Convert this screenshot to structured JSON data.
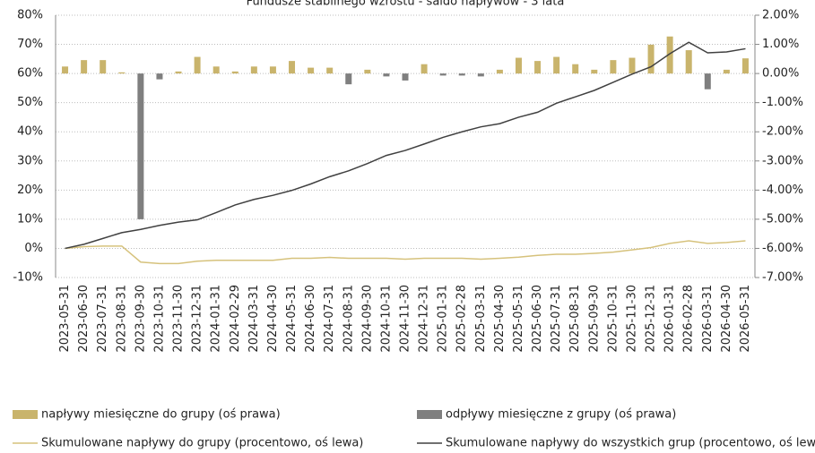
{
  "chart_data": {
    "type": "bar-line",
    "title": "Fundusze stabilnego wzrostu - saldo napływów - 3 lata",
    "categories": [
      "2023-05-31",
      "2023-06-30",
      "2023-07-31",
      "2023-08-31",
      "2023-09-30",
      "2023-10-31",
      "2023-11-30",
      "2023-12-31",
      "2024-01-31",
      "2024-02-29",
      "2024-03-31",
      "2024-04-30",
      "2024-05-31",
      "2024-06-30",
      "2024-07-31",
      "2024-08-31",
      "2024-09-30",
      "2024-10-31",
      "2024-11-30",
      "2024-12-31",
      "2025-01-31",
      "2025-02-28",
      "2025-03-31",
      "2025-04-30",
      "2025-05-31",
      "2025-06-30",
      "2025-07-31",
      "2025-08-31",
      "2025-09-30",
      "2025-10-31",
      "2025-11-30",
      "2025-12-31",
      "2026-01-31",
      "2026-02-28",
      "2026-03-31",
      "2026-04-30",
      "2026-05-31"
    ],
    "series": [
      {
        "name": "napływy miesięczne do grupy (oś prawa)",
        "kind": "bar",
        "axis": "y2",
        "color": "#c9b46c",
        "values": [
          0.24,
          0.46,
          0.46,
          0.04,
          null,
          null,
          0.07,
          0.57,
          0.24,
          0.07,
          0.24,
          0.24,
          0.43,
          0.2,
          0.2,
          null,
          0.13,
          null,
          null,
          0.32,
          null,
          null,
          null,
          0.13,
          0.54,
          0.43,
          0.57,
          0.32,
          0.13,
          0.46,
          0.54,
          0.99,
          1.27,
          0.8,
          null,
          0.13,
          0.52
        ]
      },
      {
        "name": "odpływy miesięczne z grupy (oś prawa)",
        "kind": "bar",
        "axis": "y2",
        "color": "#7f7f7f",
        "values": [
          null,
          null,
          null,
          null,
          -5.0,
          -0.2,
          null,
          null,
          null,
          null,
          null,
          null,
          null,
          null,
          null,
          -0.37,
          null,
          -0.1,
          -0.24,
          null,
          -0.07,
          -0.07,
          -0.1,
          null,
          null,
          null,
          null,
          null,
          null,
          null,
          null,
          null,
          null,
          null,
          -0.54,
          null,
          null
        ]
      },
      {
        "name": "Skumulowane napływy do grupy (procentowo, oś lewa)",
        "kind": "line",
        "color": "#d6c27c",
        "values": [
          0,
          0.6,
          0.8,
          0.8,
          -4.7,
          -5.2,
          -5.2,
          -4.4,
          -4.1,
          -4.1,
          -4.1,
          -4.1,
          -3.4,
          -3.4,
          -3.1,
          -3.4,
          -3.4,
          -3.4,
          -3.7,
          -3.4,
          -3.4,
          -3.4,
          -3.7,
          -3.4,
          -3.0,
          -2.4,
          -2.0,
          -2.0,
          -1.7,
          -1.3,
          -0.5,
          0.3,
          1.7,
          2.6,
          1.7,
          2.0,
          2.6
        ]
      },
      {
        "name": "Skumulowane napływy do wszystkich grup (procentowo, oś lewa)",
        "kind": "line",
        "color": "#404040",
        "values": [
          0,
          1.4,
          3.4,
          5.4,
          6.5,
          7.9,
          9,
          9.8,
          12.3,
          14.9,
          16.8,
          18.2,
          19.9,
          22.1,
          24.6,
          26.6,
          29.1,
          31.9,
          33.6,
          35.8,
          38.1,
          40,
          41.7,
          42.8,
          45,
          46.7,
          49.8,
          52,
          54.2,
          57,
          59.8,
          62.3,
          66.8,
          70.7,
          67.1,
          67.4,
          68.5
        ]
      }
    ],
    "ylim": [
      -10,
      80
    ],
    "yticks": [
      {
        "value": -10,
        "label": "-10%"
      },
      {
        "value": 0,
        "label": "0%"
      },
      {
        "value": 10,
        "label": "10%"
      },
      {
        "value": 20,
        "label": "20%"
      },
      {
        "value": 30,
        "label": "30%"
      },
      {
        "value": 40,
        "label": "40%"
      },
      {
        "value": 50,
        "label": "50%"
      },
      {
        "value": 60,
        "label": "60%"
      },
      {
        "value": 70,
        "label": "70%"
      },
      {
        "value": 80,
        "label": "80%"
      }
    ],
    "y2lim": [
      -7,
      2
    ],
    "y2ticks": [
      {
        "value": -7,
        "label": "-7.00%"
      },
      {
        "value": -6,
        "label": "-6.00%"
      },
      {
        "value": -5,
        "label": "-5.00%"
      },
      {
        "value": -4,
        "label": "-4.00%"
      },
      {
        "value": -3,
        "label": "-3.00%"
      },
      {
        "value": -2,
        "label": "-2.00%"
      },
      {
        "value": -1,
        "label": "-1.00%"
      },
      {
        "value": 0,
        "label": "0.00%"
      },
      {
        "value": 1,
        "label": "1.00%"
      },
      {
        "value": 2,
        "label": "2.00%"
      }
    ],
    "grid": true
  }
}
